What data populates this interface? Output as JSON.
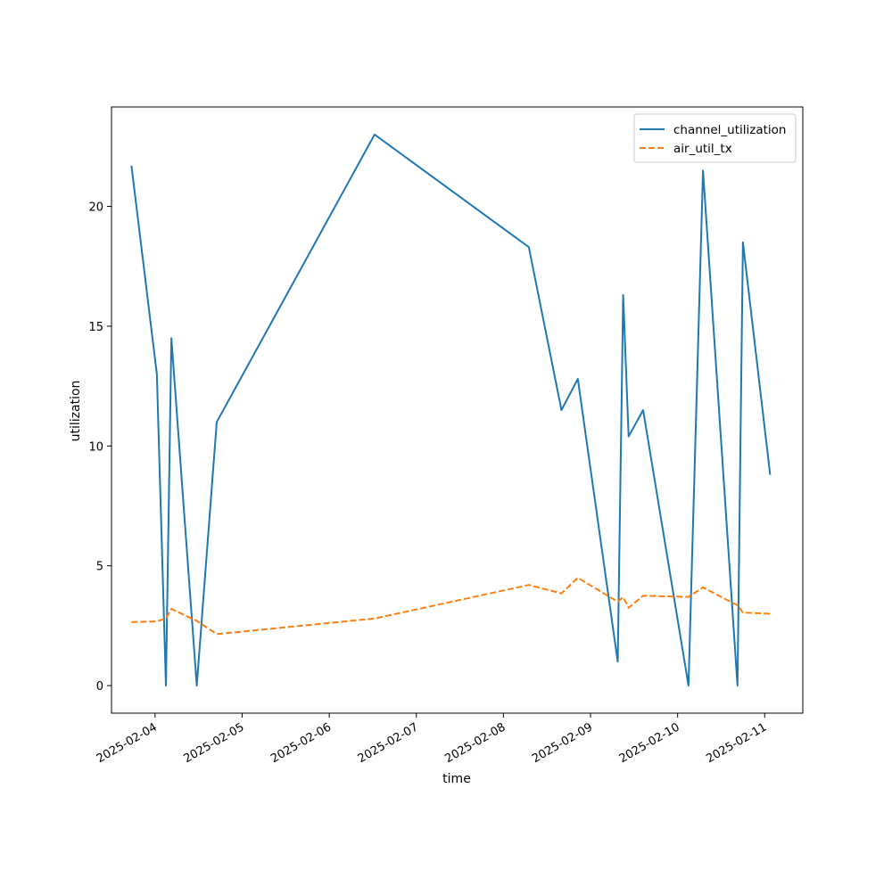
{
  "chart_data": {
    "type": "line",
    "title": "",
    "xlabel": "time",
    "ylabel": "utilization",
    "x_axis_type": "date",
    "xlim": [
      "2025-02-03T12:00",
      "2025-02-11T10:30"
    ],
    "ylim": [
      -1.15,
      24.15
    ],
    "x_ticks": [
      "2025-02-04",
      "2025-02-05",
      "2025-02-06",
      "2025-02-07",
      "2025-02-08",
      "2025-02-09",
      "2025-02-10",
      "2025-02-11"
    ],
    "y_ticks": [
      0,
      5,
      10,
      15,
      20
    ],
    "grid": false,
    "legend_position": "top-right",
    "x": [
      "2025-02-03T17:30",
      "2025-02-04T00:30",
      "2025-02-04T03:00",
      "2025-02-04T04:30",
      "2025-02-04T11:30",
      "2025-02-04T17:00",
      "2025-02-06T12:30",
      "2025-02-08T07:00",
      "2025-02-08T16:00",
      "2025-02-08T20:30",
      "2025-02-09T07:30",
      "2025-02-09T09:00",
      "2025-02-09T10:30",
      "2025-02-09T14:30",
      "2025-02-10T03:00",
      "2025-02-10T07:00",
      "2025-02-10T16:30",
      "2025-02-10T18:00",
      "2025-02-11T01:30"
    ],
    "series": [
      {
        "name": "channel_utilization",
        "color": "#1f77b4",
        "style": "solid",
        "values": [
          21.7,
          13.0,
          0.0,
          14.5,
          0.0,
          11.0,
          23.0,
          18.3,
          11.5,
          12.8,
          1.0,
          16.3,
          10.4,
          11.5,
          0.0,
          21.5,
          0.0,
          18.5,
          8.8
        ]
      },
      {
        "name": "air_util_tx",
        "color": "#ff7f0e",
        "style": "dashed",
        "values": [
          2.65,
          2.68,
          2.8,
          3.2,
          2.7,
          2.15,
          2.8,
          4.2,
          3.85,
          4.5,
          3.5,
          3.7,
          3.25,
          3.75,
          3.7,
          4.1,
          3.35,
          3.05,
          3.0
        ]
      }
    ]
  }
}
